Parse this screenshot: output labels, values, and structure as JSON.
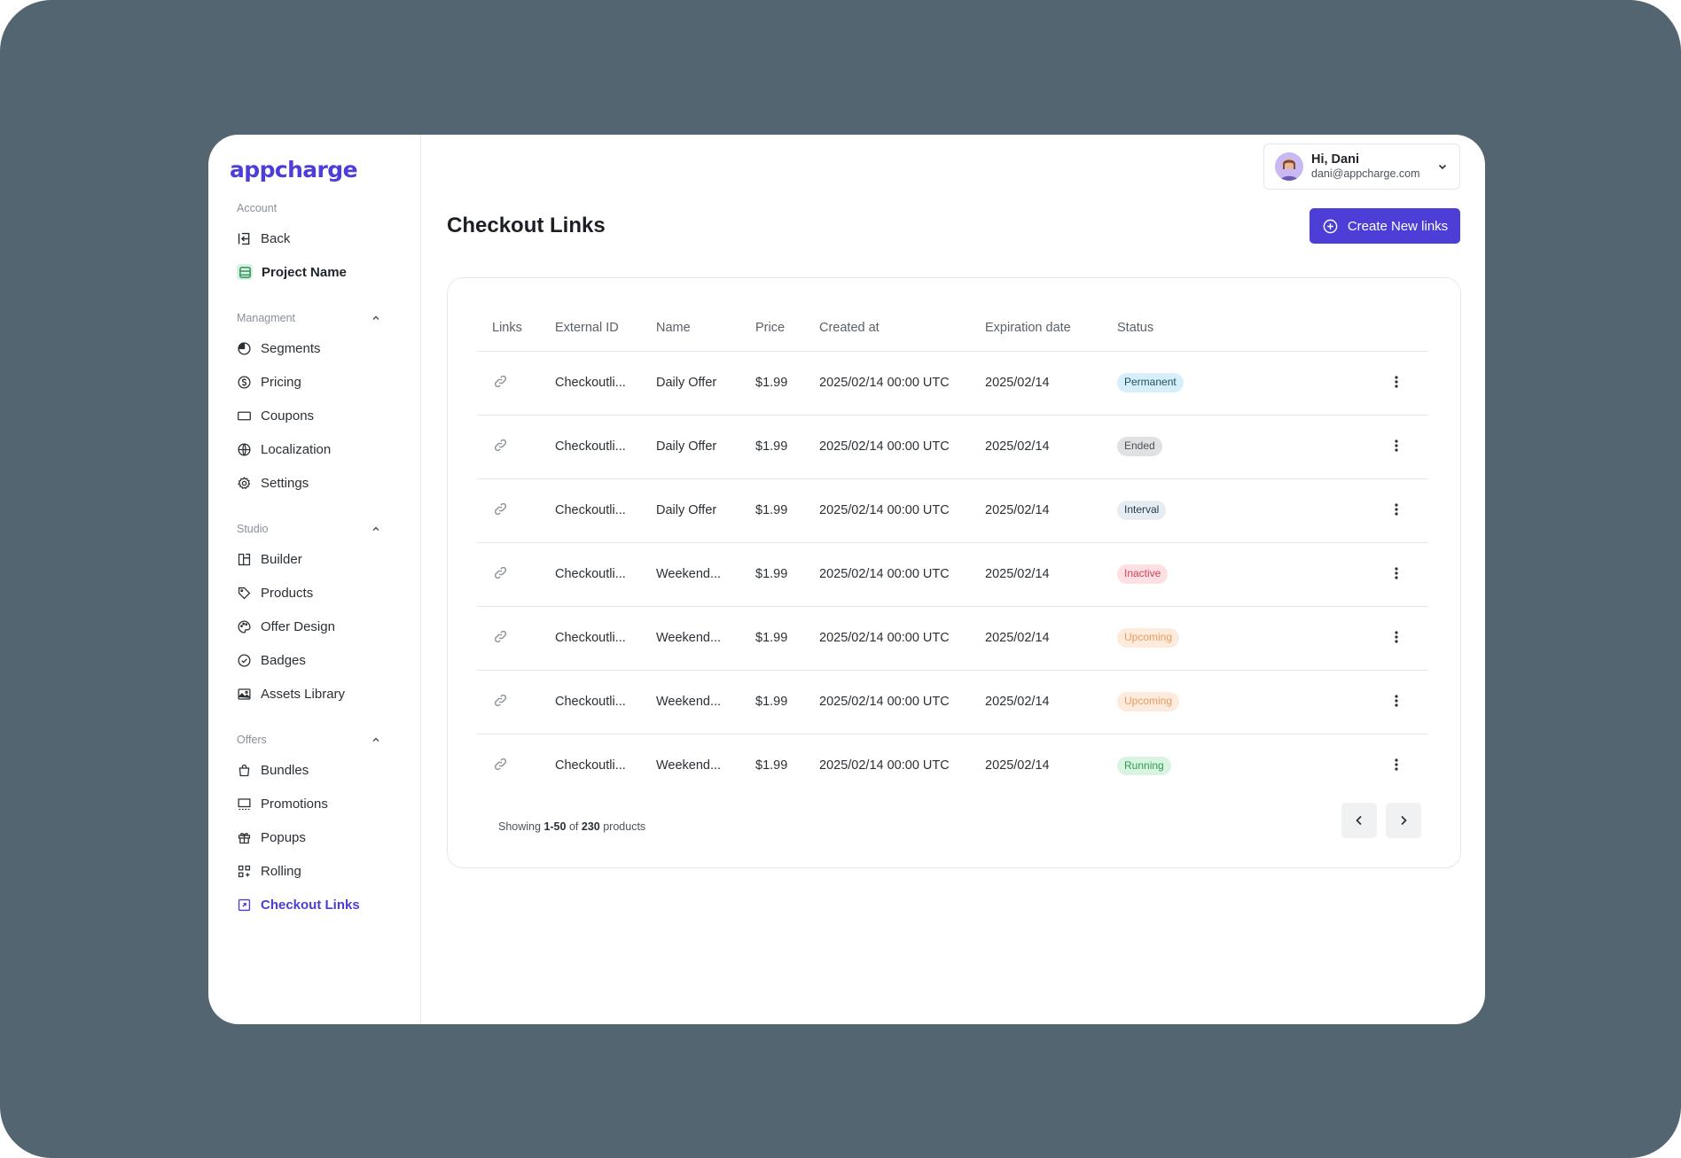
{
  "brand": {
    "logo_text": "appcharge",
    "accent": "#4c3ed6"
  },
  "sidebar": {
    "account_label": "Account",
    "back_label": "Back",
    "project_label": "Project Name",
    "management_label": "Managment",
    "management_items": [
      "Segments",
      "Pricing",
      "Coupons",
      "Localization",
      "Settings"
    ],
    "studio_label": "Studio",
    "studio_items": [
      "Builder",
      "Products",
      "Offer Design",
      "Badges",
      "Assets Library"
    ],
    "offers_label": "Offers",
    "offers_items": [
      "Bundles",
      "Promotions",
      "Popups",
      "Rolling",
      "Checkout Links"
    ]
  },
  "user": {
    "greeting": "Hi, Dani",
    "email": "dani@appcharge.com"
  },
  "page": {
    "title": "Checkout Links",
    "create_button": "Create New links"
  },
  "table": {
    "headers": [
      "Links",
      "External ID",
      "Name",
      "Price",
      "Created at",
      "Expiration date",
      "Status"
    ],
    "rows": [
      {
        "external_id": "Checkoutli...",
        "name": "Daily Offer",
        "price": "$1.99",
        "created": "2025/02/14 00:00 UTC",
        "expiration": "2025/02/14",
        "status": "Permanent",
        "status_bg": "#d7effa",
        "status_fg": "#1f4f66"
      },
      {
        "external_id": "Checkoutli...",
        "name": "Daily Offer",
        "price": "$1.99",
        "created": "2025/02/14 00:00 UTC",
        "expiration": "2025/02/14",
        "status": "Ended",
        "status_bg": "#e0e1e3",
        "status_fg": "#4a4f55"
      },
      {
        "external_id": "Checkoutli...",
        "name": "Daily Offer",
        "price": "$1.99",
        "created": "2025/02/14 00:00 UTC",
        "expiration": "2025/02/14",
        "status": "Interval",
        "status_bg": "#e5ecf2",
        "status_fg": "#2d3a46"
      },
      {
        "external_id": "Checkoutli...",
        "name": "Weekend...",
        "price": "$1.99",
        "created": "2025/02/14 00:00 UTC",
        "expiration": "2025/02/14",
        "status": "Inactive",
        "status_bg": "#fde0e4",
        "status_fg": "#d14357"
      },
      {
        "external_id": "Checkoutli...",
        "name": "Weekend...",
        "price": "$1.99",
        "created": "2025/02/14 00:00 UTC",
        "expiration": "2025/02/14",
        "status": "Upcoming",
        "status_bg": "#fdebdd",
        "status_fg": "#eb9a5c"
      },
      {
        "external_id": "Checkoutli...",
        "name": "Weekend...",
        "price": "$1.99",
        "created": "2025/02/14 00:00 UTC",
        "expiration": "2025/02/14",
        "status": "Upcoming",
        "status_bg": "#fdebdd",
        "status_fg": "#eb9a5c"
      },
      {
        "external_id": "Checkoutli...",
        "name": "Weekend...",
        "price": "$1.99",
        "created": "2025/02/14 00:00 UTC",
        "expiration": "2025/02/14",
        "status": "Running",
        "status_bg": "#d9f5e1",
        "status_fg": "#2f9a52"
      }
    ]
  },
  "pagination": {
    "prefix": "Showing",
    "range": "1-50",
    "of": "of",
    "total": "230",
    "suffix": "products"
  }
}
